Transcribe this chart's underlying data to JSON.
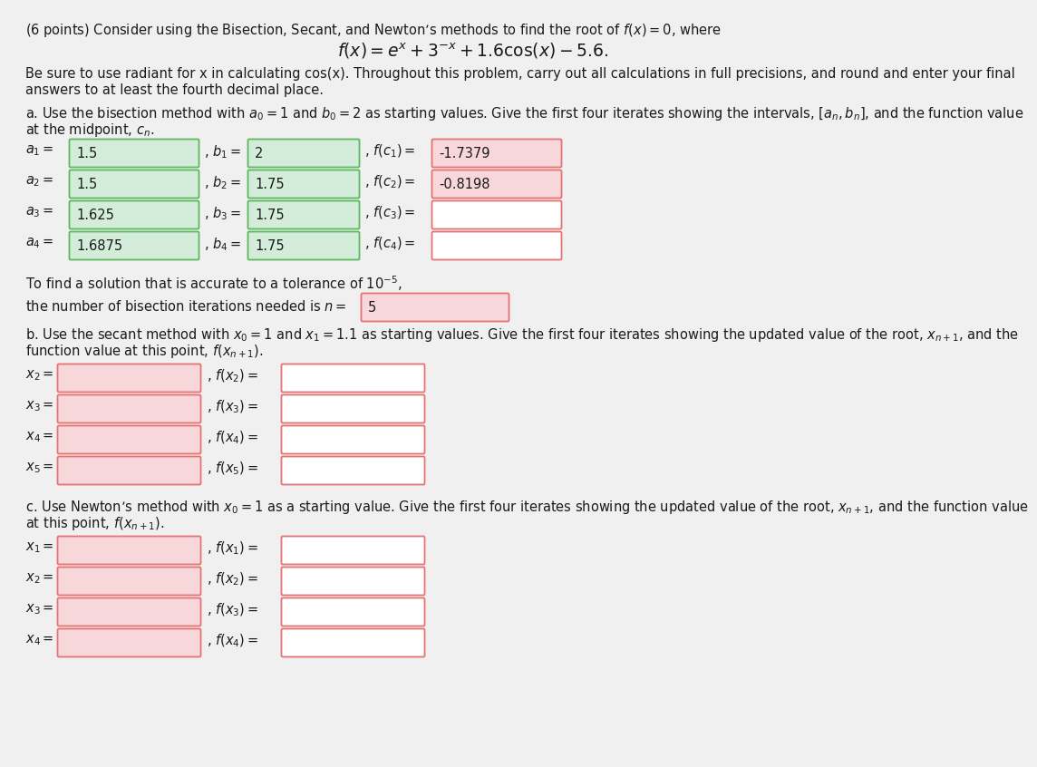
{
  "bg_color": "#f0f0f0",
  "page_color": "#f0f0f0",
  "text_color": "#1a1a1a",
  "title_line": "(6 points) Consider using the Bisection, Secant, and Newton’s methods to find the root of $f(x) = 0$, where",
  "formula": "$f(x) = e^x + 3^{-x} + 1.6\\cos(x) - 5.6.$",
  "body_text1": "Be sure to use radiant for x in calculating cos(x). Throughout this problem, carry out all calculations in full precisions, and round and enter your final",
  "body_text2": "answers to at least the fourth decimal place.",
  "part_a_text1": "a. Use the bisection method with $a_0 = 1$ and $b_0 = 2$ as starting values. Give the first four iterates showing the intervals, $[a_n, b_n]$, and the function value",
  "part_a_text2": "at the midpoint, $c_n$.",
  "bisection_rows": [
    {
      "label_a": "$a_1 =$",
      "val_a": "1.5",
      "label_b": ", $b_1 =$",
      "val_b": "2",
      "label_fc": ", $f(c_1) =$",
      "val_fc": "-1.7379",
      "fc_has_val": true
    },
    {
      "label_a": "$a_2 =$",
      "val_a": "1.5",
      "label_b": ", $b_2 =$",
      "val_b": "1.75",
      "label_fc": ", $f(c_2) =$",
      "val_fc": "-0.8198",
      "fc_has_val": true
    },
    {
      "label_a": "$a_3 =$",
      "val_a": "1.625",
      "label_b": ", $b_3 =$",
      "val_b": "1.75",
      "label_fc": ", $f(c_3) =$",
      "val_fc": "",
      "fc_has_val": false
    },
    {
      "label_a": "$a_4 =$",
      "val_a": "1.6875",
      "label_b": ", $b_4 =$",
      "val_b": "1.75",
      "label_fc": ", $f(c_4) =$",
      "val_fc": "",
      "fc_has_val": false
    }
  ],
  "tolerance_text": "To find a solution that is accurate to a tolerance of $10^{-5}$,",
  "bisection_n_text": "the number of bisection iterations needed is $n =$",
  "bisection_n_val": "5",
  "part_b_text1": "b. Use the secant method with $x_0 = 1$ and $x_1 = 1.1$ as starting values. Give the first four iterates showing the updated value of the root, $x_{n+1}$, and the",
  "part_b_text2": "function value at this point, $f(x_{n+1})$.",
  "secant_rows": [
    {
      "label": "$x_2 =$",
      "label_f": ", $f(x_2) =$"
    },
    {
      "label": "$x_3 =$",
      "label_f": ", $f(x_3) =$"
    },
    {
      "label": "$x_4 =$",
      "label_f": ", $f(x_4) =$"
    },
    {
      "label": "$x_5 =$",
      "label_f": ", $f(x_5) =$"
    }
  ],
  "part_c_text1": "c. Use Newton’s method with $x_0 = 1$ as a starting value. Give the first four iterates showing the updated value of the root, $x_{n+1}$, and the function value",
  "part_c_text2": "at this point, $f(x_{n+1})$.",
  "newton_rows": [
    {
      "label": "$x_1 =$",
      "label_f": ", $f(x_1) =$"
    },
    {
      "label": "$x_2 =$",
      "label_f": ", $f(x_2) =$"
    },
    {
      "label": "$x_3 =$",
      "label_f": ", $f(x_3) =$"
    },
    {
      "label": "$x_4 =$",
      "label_f": ", $f(x_4) =$"
    }
  ],
  "box_green_fill": "#d4edda",
  "box_green_border": "#5cb85c",
  "box_red_fill": "#f8d7da",
  "box_red_border": "#e57373",
  "box_white_fill": "#ffffff",
  "box_white_border": "#e57373",
  "font_size_body": 10.5,
  "font_size_formula": 13.5
}
